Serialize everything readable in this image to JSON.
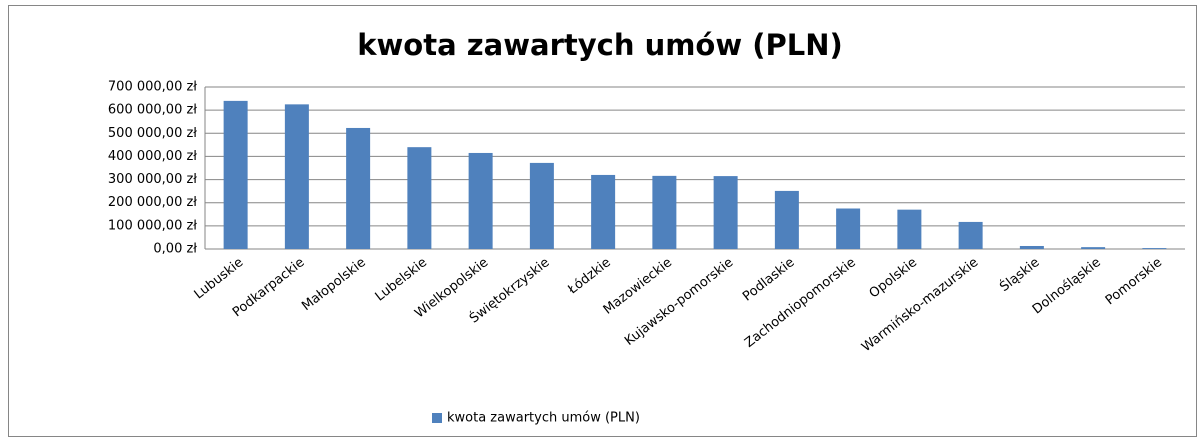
{
  "chart_data": {
    "type": "bar",
    "title": "kwota zawartych umów (PLN)",
    "categories": [
      "Lubuskie",
      "Podkarpackie",
      "Małopolskie",
      "Lubelskie",
      "Wielkopolskie",
      "Świętokrzyskie",
      "Łódzkie",
      "Mazowieckie",
      "Kujawsko-pomorskie",
      "Podlaskie",
      "Zachodniopomorskie",
      "Opolskie",
      "Warmińsko-mazurskie",
      "Śląskie",
      "Dolnośląskie",
      "Pomorskie"
    ],
    "series": [
      {
        "name": "kwota zawartych umów (PLN)",
        "color": "#4f81bd",
        "values": [
          640000,
          625000,
          523000,
          440000,
          415000,
          372000,
          320000,
          316000,
          315000,
          251000,
          175000,
          170000,
          117000,
          13000,
          8000,
          4000
        ]
      }
    ],
    "ylim": [
      0,
      700000
    ],
    "yticks": [
      {
        "value": 0,
        "label": "0,00 zł"
      },
      {
        "value": 100000,
        "label": "100 000,00 zł"
      },
      {
        "value": 200000,
        "label": "200 000,00 zł"
      },
      {
        "value": 300000,
        "label": "300 000,00 zł"
      },
      {
        "value": 400000,
        "label": "400 000,00 zł"
      },
      {
        "value": 500000,
        "label": "500 000,00 zł"
      },
      {
        "value": 600000,
        "label": "600 000,00 zł"
      },
      {
        "value": 700000,
        "label": "700 000,00 zł"
      }
    ],
    "grid": true,
    "legend": "bottom"
  }
}
